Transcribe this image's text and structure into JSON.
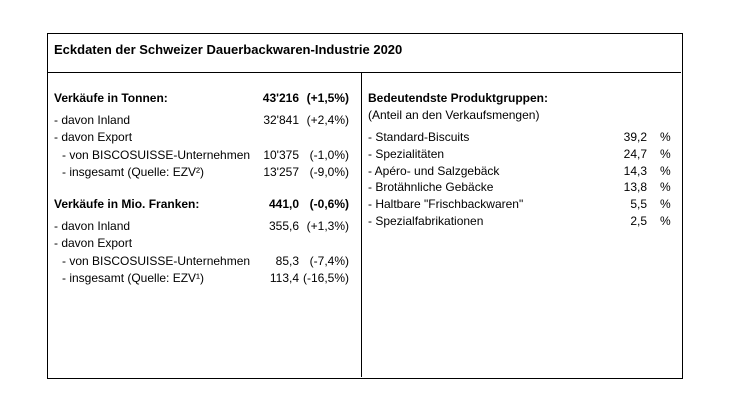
{
  "title": "Eckdaten der Schweizer Dauerbackwaren-Industrie 2020",
  "left": {
    "sections": [
      {
        "heading": {
          "label": "Verkäufe in Tonnen:",
          "value": "43'216",
          "change": "(+1,5%)"
        },
        "rows": [
          {
            "label": "- davon Inland",
            "value": "32'841",
            "change": "(+2,4%)"
          },
          {
            "label": "- davon Export"
          },
          {
            "label": "- von BISCOSUISSE-Unternehmen",
            "value": "10'375",
            "change": "(-1,0%)"
          },
          {
            "label": "- insgesamt (Quelle: EZV²)",
            "value": "13'257",
            "change": "(-9,0%)"
          }
        ]
      },
      {
        "heading": {
          "label": "Verkäufe in Mio. Franken:",
          "value": "441,0",
          "change": "(-0,6%)"
        },
        "rows": [
          {
            "label": "- davon Inland",
            "value": "355,6",
            "change": "(+1,3%)"
          },
          {
            "label": "- davon Export"
          },
          {
            "label": "- von BISCOSUISSE-Unternehmen",
            "value": "85,3",
            "change": "(-7,4%)"
          },
          {
            "label": "- insgesamt (Quelle: EZV¹)",
            "value": "113,4",
            "change": "(-16,5%)"
          }
        ]
      }
    ]
  },
  "right": {
    "heading": "Bedeutendste Produktgruppen:",
    "subheading": "(Anteil an den Verkaufsmengen)",
    "rows": [
      {
        "label": "- Standard-Biscuits",
        "value": "39,2",
        "unit": "%"
      },
      {
        "label": "- Spezialitäten",
        "value": "24,7",
        "unit": "%"
      },
      {
        "label": "- Apéro- und Salzgebäck",
        "value": "14,3",
        "unit": "%"
      },
      {
        "label": "- Brotähnliche Gebäcke",
        "value": "13,8",
        "unit": "%"
      },
      {
        "label": "- Haltbare \"Frischbackwaren\"",
        "value": "5,5",
        "unit": "%"
      },
      {
        "label": "- Spezialfabrikationen",
        "value": "2,5",
        "unit": "%"
      }
    ]
  }
}
